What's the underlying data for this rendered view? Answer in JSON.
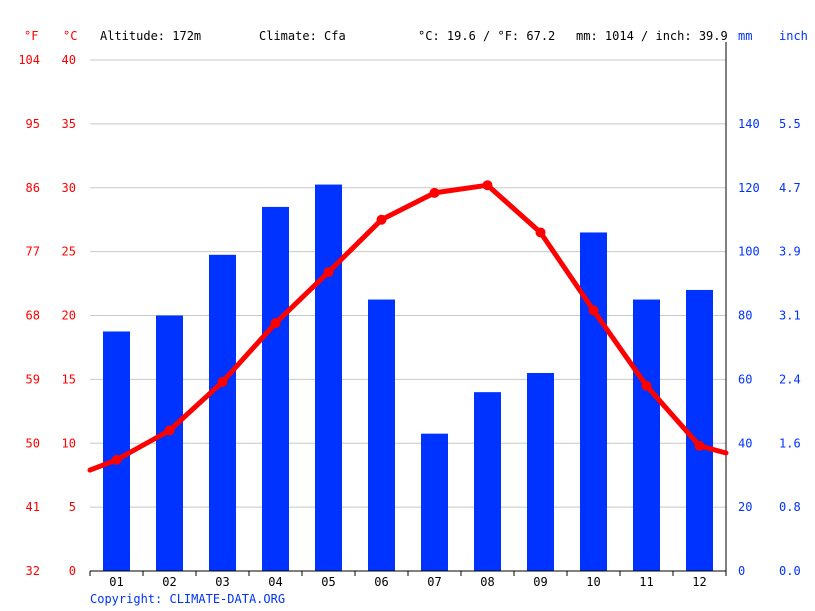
{
  "header": {
    "unit_f": "°F",
    "unit_c": "°C",
    "altitude": "Altitude: 172m",
    "climate": "Climate: Cfa",
    "temp_avg": "°C: 19.6 / °F: 67.2",
    "precip_total": "mm: 1014 / inch: 39.9",
    "unit_mm": "mm",
    "unit_inch": "inch"
  },
  "footer": {
    "copyright": "Copyright: CLIMATE-DATA.ORG"
  },
  "colors": {
    "temperature": "#ff0000",
    "precipitation": "#0033ff",
    "grid": "#c8c8c8"
  },
  "chart_data": {
    "type": "bar",
    "categories": [
      "01",
      "02",
      "03",
      "04",
      "05",
      "06",
      "07",
      "08",
      "09",
      "10",
      "11",
      "12"
    ],
    "series": [
      {
        "values": [
          75,
          80,
          99,
          114,
          121,
          85,
          43,
          56,
          62,
          106,
          85,
          88
        ]
      },
      {
        "type": "line",
        "values": [
          8.7,
          11.0,
          14.8,
          19.4,
          23.4,
          27.5,
          29.6,
          30.2,
          26.5,
          20.4,
          14.5,
          9.8
        ]
      }
    ],
    "y_left_c_ticks": [
      "0",
      "5",
      "10",
      "15",
      "20",
      "25",
      "30",
      "35",
      "40"
    ],
    "y_left_f_ticks": [
      "32",
      "41",
      "50",
      "59",
      "68",
      "77",
      "86",
      "95",
      "104"
    ],
    "y_right_mm_ticks": [
      "0",
      "20",
      "40",
      "60",
      "80",
      "100",
      "120",
      "140"
    ],
    "y_right_inch_ticks": [
      "0.0",
      "0.8",
      "1.6",
      "2.4",
      "3.1",
      "3.9",
      "4.7",
      "5.5"
    ],
    "ylim_c": [
      0,
      40
    ],
    "ylim_mm": [
      0,
      160
    ],
    "grid": true
  }
}
